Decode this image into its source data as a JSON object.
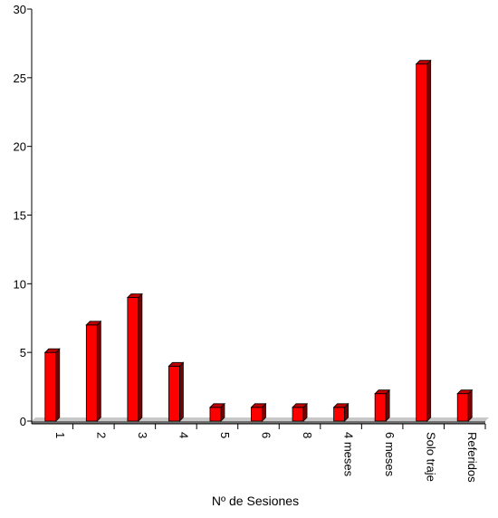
{
  "chart_data": {
    "type": "bar",
    "title": "",
    "xlabel": "Nº de Sesiones",
    "ylabel": "",
    "ylim": [
      0,
      30
    ],
    "yticks": [
      "0",
      "5",
      "10",
      "15",
      "20",
      "25",
      "30"
    ],
    "categories": [
      "1",
      "2",
      "3",
      "4",
      "5",
      "6",
      "8",
      "4 meses",
      "6 meses",
      "Solo traje",
      "Referidos"
    ],
    "values": [
      5,
      7,
      9,
      4,
      1,
      1,
      1,
      1,
      2,
      26,
      2
    ],
    "bar_color": "#ff0000",
    "bar_side_color": "#7a0000",
    "bar_top_color": "#c00000",
    "grid": false,
    "legend": "none",
    "floor_3d": true
  }
}
